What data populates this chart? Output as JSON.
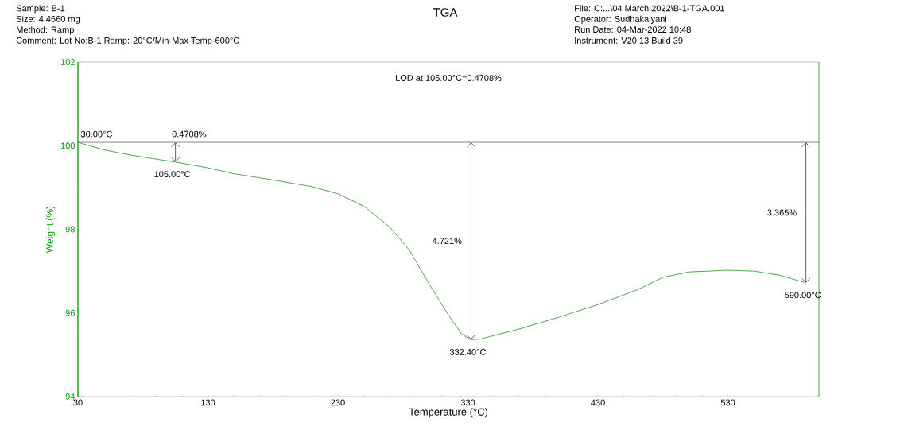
{
  "chart_data": {
    "type": "line",
    "title": "TGA",
    "xlabel": "Temperature (°C)",
    "ylabel": "Weight (%)",
    "xlim": [
      30,
      600
    ],
    "ylim": [
      94,
      102
    ],
    "xticks": [
      30,
      130,
      230,
      330,
      430,
      530
    ],
    "yticks": [
      94,
      96,
      98,
      100,
      102
    ],
    "grid": false,
    "marker": "none",
    "line_style": "solid",
    "ref_lines": [
      {
        "axis": "y",
        "value": 100.08,
        "color": "#333333"
      }
    ],
    "series": [
      {
        "color": "#3f9a3a",
        "x": [
          30,
          50,
          70,
          90,
          105,
          130,
          150,
          180,
          210,
          230,
          250,
          270,
          285,
          300,
          315,
          325,
          332.4,
          340,
          370,
          400,
          430,
          460,
          480,
          500,
          530,
          550,
          570,
          590
        ],
        "values": [
          100.08,
          99.9,
          99.78,
          99.68,
          99.61,
          99.47,
          99.33,
          99.18,
          99.02,
          98.85,
          98.55,
          98.05,
          97.5,
          96.7,
          95.95,
          95.5,
          95.36,
          95.38,
          95.62,
          95.9,
          96.2,
          96.55,
          96.85,
          96.98,
          97.02,
          97.0,
          96.9,
          96.72
        ]
      }
    ],
    "annotations": [
      "Sample: B-1",
      "Size:  4.4660 mg",
      "Method: Ramp",
      "Comment: Lot No:B-1 Ramp: 20°C/Min-Max Temp-600°C",
      "File: C:...\\04 March 2022\\B-1-TGA.001",
      "Operator: Sudhakalyani",
      "Run Date: 04-Mar-2022 10:48",
      "Instrument: V20.13 Build 39",
      "LOD at 105.00°C=0.4708%",
      "4.721%",
      "3.365%",
      {
        "text": "30.00°C",
        "x": 30,
        "y": 100.08
      },
      {
        "text": "105.00°C",
        "x": 105,
        "y": 99.61
      },
      {
        "text": "0.4708%",
        "x": 105,
        "y": 99.61
      },
      {
        "text": "332.40°C",
        "x": 332.4,
        "y": 95.36
      },
      {
        "text": "590.00°C",
        "x": 590,
        "y": 96.72
      }
    ]
  }
}
